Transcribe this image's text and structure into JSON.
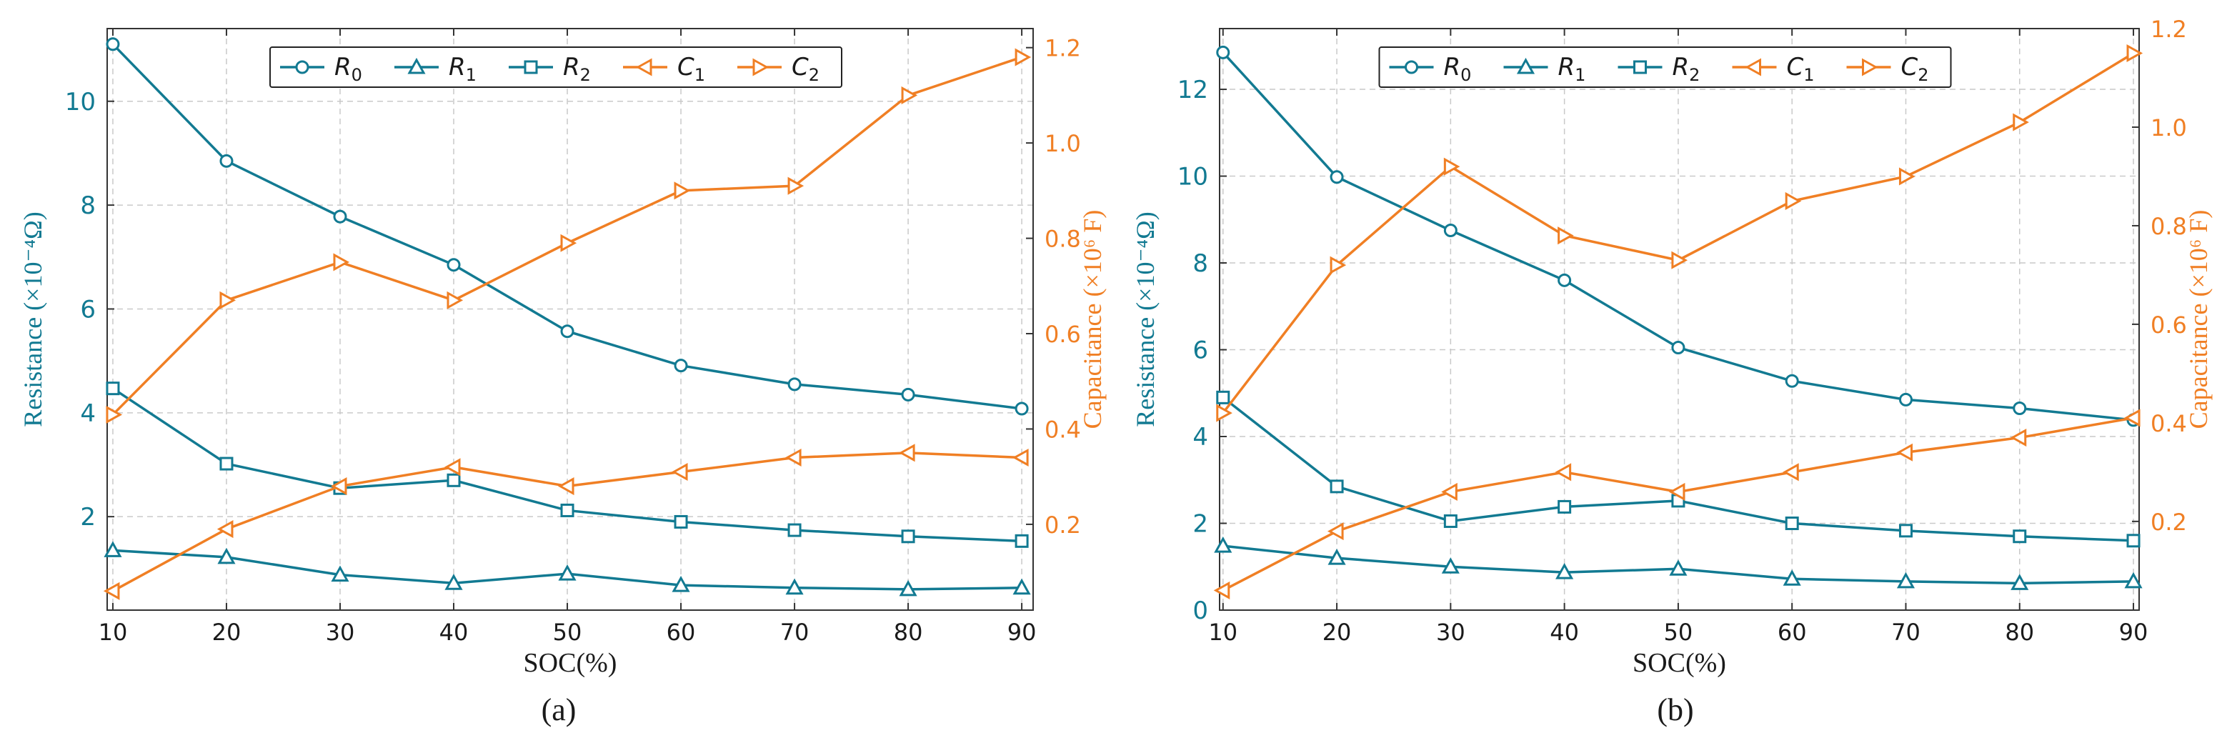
{
  "colors": {
    "resistance": "#127a92",
    "capacitance": "#f07f24",
    "grid": "#c9c9c9",
    "axis": "#333333",
    "text": "#1a1a1a"
  },
  "chart_data": [
    {
      "type": "line",
      "panel_label": "(a)",
      "xlabel": "SOC(%)",
      "ylabel_left": "Resistance (×10⁻⁴Ω)",
      "ylabel_right": "Capacitance (×10⁶ F)",
      "x": [
        10,
        20,
        30,
        40,
        50,
        60,
        70,
        80,
        90
      ],
      "xlim": [
        9.5,
        91
      ],
      "ylim_left": [
        0.2,
        11.4
      ],
      "ylim_right": [
        0.02,
        1.24
      ],
      "yticks_left": [
        2,
        4,
        6,
        8,
        10
      ],
      "yticks_right": [
        0.2,
        0.4,
        0.6,
        0.8,
        1.0,
        1.2
      ],
      "grid": true,
      "legend": "top-center",
      "series": [
        {
          "name": "R",
          "sub": "0",
          "axis": "left",
          "marker": "circle",
          "values": [
            11.1,
            8.85,
            7.78,
            6.85,
            5.57,
            4.91,
            4.55,
            4.35,
            4.08
          ]
        },
        {
          "name": "R",
          "sub": "1",
          "axis": "left",
          "marker": "triangle-up",
          "values": [
            1.35,
            1.22,
            0.88,
            0.72,
            0.9,
            0.68,
            0.63,
            0.6,
            0.63
          ]
        },
        {
          "name": "R",
          "sub": "2",
          "axis": "left",
          "marker": "square",
          "values": [
            4.47,
            3.02,
            2.55,
            2.7,
            2.12,
            1.9,
            1.74,
            1.62,
            1.53
          ]
        },
        {
          "name": "C",
          "sub": "1",
          "axis": "right",
          "marker": "triangle-left",
          "values": [
            0.06,
            0.19,
            0.28,
            0.32,
            0.28,
            0.31,
            0.34,
            0.35,
            0.34
          ]
        },
        {
          "name": "C",
          "sub": "2",
          "axis": "right",
          "marker": "triangle-right",
          "values": [
            0.43,
            0.67,
            0.75,
            0.67,
            0.79,
            0.9,
            0.91,
            1.1,
            1.18
          ]
        }
      ]
    },
    {
      "type": "line",
      "panel_label": "(b)",
      "xlabel": "SOC(%)",
      "ylabel_left": "Resistance (×10⁻⁴Ω)",
      "ylabel_right": "Capacitance (×10⁶ F)",
      "x": [
        10,
        20,
        30,
        40,
        50,
        60,
        70,
        80,
        90
      ],
      "xlim": [
        9.7,
        90.5
      ],
      "ylim_left": [
        0,
        13.4
      ],
      "ylim_right": [
        0.02,
        1.2
      ],
      "yticks_left": [
        0,
        2,
        4,
        6,
        8,
        10,
        12
      ],
      "yticks_right": [
        0.2,
        0.4,
        0.6,
        0.8,
        1.0,
        1.2
      ],
      "grid": true,
      "legend": "top-center",
      "series": [
        {
          "name": "R",
          "sub": "0",
          "axis": "left",
          "marker": "circle",
          "values": [
            12.85,
            9.98,
            8.75,
            7.6,
            6.05,
            5.28,
            4.85,
            4.65,
            4.38
          ]
        },
        {
          "name": "R",
          "sub": "1",
          "axis": "left",
          "marker": "triangle-up",
          "values": [
            1.48,
            1.2,
            1.0,
            0.87,
            0.95,
            0.72,
            0.66,
            0.62,
            0.66
          ]
        },
        {
          "name": "R",
          "sub": "2",
          "axis": "left",
          "marker": "square",
          "values": [
            4.9,
            2.85,
            2.05,
            2.38,
            2.52,
            2.0,
            1.83,
            1.7,
            1.6
          ]
        },
        {
          "name": "C",
          "sub": "1",
          "axis": "right",
          "marker": "triangle-left",
          "values": [
            0.06,
            0.18,
            0.26,
            0.3,
            0.26,
            0.3,
            0.34,
            0.37,
            0.41
          ]
        },
        {
          "name": "C",
          "sub": "2",
          "axis": "right",
          "marker": "triangle-right",
          "values": [
            0.42,
            0.72,
            0.92,
            0.78,
            0.73,
            0.85,
            0.9,
            1.01,
            1.15
          ]
        }
      ]
    }
  ]
}
